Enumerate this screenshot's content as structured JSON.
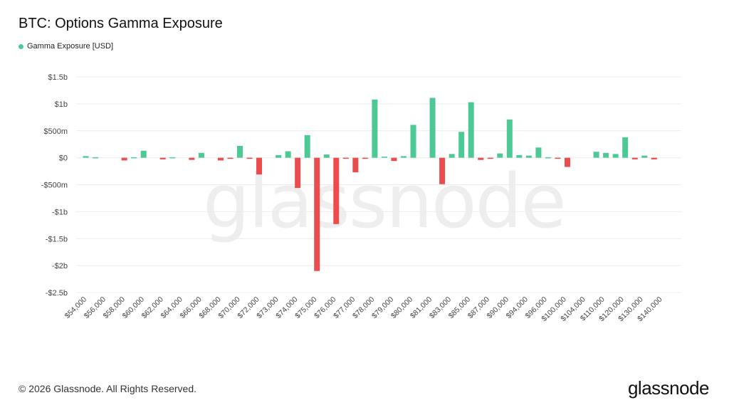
{
  "header": {
    "title": "BTC: Options Gamma Exposure"
  },
  "legend": {
    "label": "Gamma Exposure [USD]",
    "color": "#4cc994"
  },
  "watermark": "glassnode",
  "footer": {
    "copyright": "© 2026 Glassnode. All Rights Reserved.",
    "logo": "glassnode"
  },
  "colors": {
    "positive": "#4cc994",
    "negative": "#eb4d4d",
    "grid": "#ececec",
    "axis_text": "#444444"
  },
  "chart_data": {
    "type": "bar",
    "title": "BTC: Options Gamma Exposure",
    "ylim": [
      -2500000000,
      1500000000
    ],
    "yticks": [
      {
        "value": 1500000000,
        "label": "$1.5b"
      },
      {
        "value": 1000000000,
        "label": "$1b"
      },
      {
        "value": 500000000,
        "label": "$500m"
      },
      {
        "value": 0,
        "label": "$0"
      },
      {
        "value": -500000000,
        "label": "-$500m"
      },
      {
        "value": -1000000000,
        "label": "-$1b"
      },
      {
        "value": -1500000000,
        "label": "-$1.5b"
      },
      {
        "value": -2000000000,
        "label": "-$2b"
      },
      {
        "value": -2500000000,
        "label": "-$2.5b"
      }
    ],
    "xtick_labels": [
      "$54,000",
      "$56,000",
      "$58,000",
      "$60,000",
      "$62,000",
      "$64,000",
      "$66,000",
      "$68,000",
      "$70,000",
      "$72,000",
      "$73,000",
      "$74,000",
      "$75,000",
      "$76,000",
      "$77,000",
      "$78,000",
      "$79,000",
      "$80,000",
      "$81,000",
      "$83,000",
      "$85,000",
      "$87,000",
      "$90,000",
      "$94,000",
      "$96,000",
      "$100,000",
      "$104,000",
      "$110,000",
      "$120,000",
      "$130,000",
      "$140,000"
    ],
    "grid": true,
    "legend": "top-left",
    "series": [
      {
        "name": "Gamma Exposure [USD]",
        "values": [
          30000000,
          10000000,
          0,
          0,
          -50000000,
          10000000,
          130000000,
          0,
          -30000000,
          10000000,
          0,
          -40000000,
          90000000,
          0,
          -50000000,
          -20000000,
          220000000,
          -20000000,
          -310000000,
          0,
          50000000,
          120000000,
          -560000000,
          420000000,
          -2100000000,
          60000000,
          -1230000000,
          -10000000,
          -270000000,
          -20000000,
          1080000000,
          20000000,
          -60000000,
          30000000,
          610000000,
          0,
          1110000000,
          -490000000,
          70000000,
          480000000,
          1030000000,
          -40000000,
          -20000000,
          80000000,
          710000000,
          50000000,
          40000000,
          190000000,
          10000000,
          -10000000,
          -170000000,
          0,
          0,
          110000000,
          90000000,
          70000000,
          380000000,
          -30000000,
          40000000,
          -30000000
        ]
      }
    ]
  }
}
